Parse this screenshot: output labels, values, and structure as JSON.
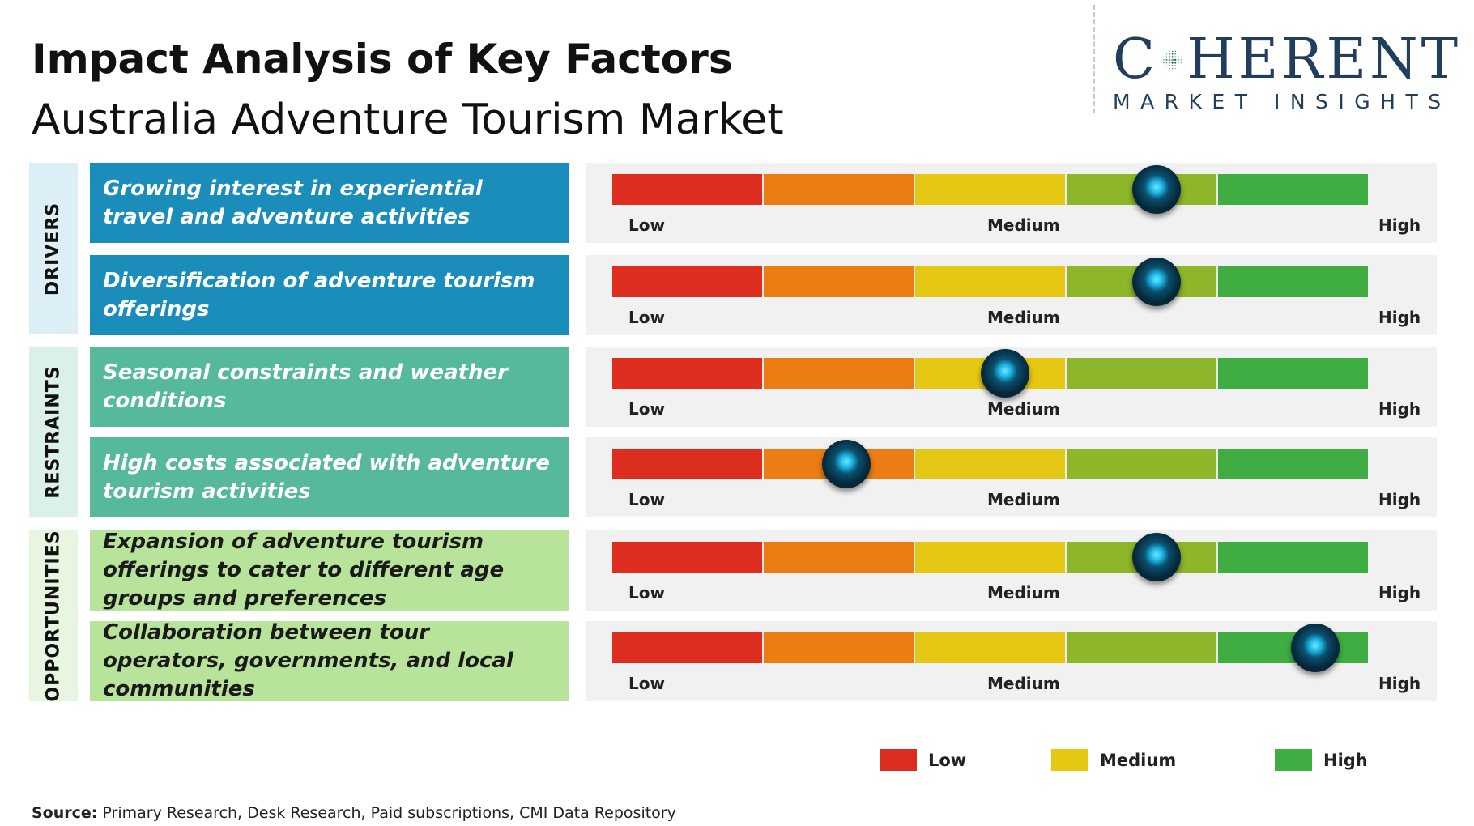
{
  "header": {
    "title": "Impact Analysis of Key Factors",
    "subtitle": "Australia Adventure Tourism Market"
  },
  "logo": {
    "main_left": "C",
    "main_right": "HERENT",
    "tagline": "MARKET INSIGHTS"
  },
  "groups": {
    "drivers": "DRIVERS",
    "restraints": "RESTRAINTS",
    "opportunities": "OPPORTUNITIES"
  },
  "scale_labels": {
    "low": "Low",
    "medium": "Medium",
    "high": "High"
  },
  "colors": {
    "scale_segments": [
      "#dd2d1e",
      "#ec7d13",
      "#e5c813",
      "#8db62a",
      "#3fad42"
    ],
    "legend_low": "#dd2d1e",
    "legend_medium": "#e5c813",
    "legend_high": "#3fad42",
    "drivers": "#1a8dba",
    "restraints": "#56b99c",
    "opportunities": "#b8e39a"
  },
  "legend": {
    "low": "Low",
    "medium": "Medium",
    "high": "High"
  },
  "source": {
    "label": "Source:",
    "text": " Primary Research, Desk Research, Paid subscriptions, CMI Data Repository"
  },
  "chart_data": {
    "type": "gauge",
    "scale": {
      "min": 0,
      "max": 1,
      "labels": [
        "Low",
        "Medium",
        "High"
      ]
    },
    "factors": [
      {
        "group": "DRIVERS",
        "label": "Growing interest in experiential travel and adventure activities",
        "impact": 0.72
      },
      {
        "group": "DRIVERS",
        "label": "Diversification of adventure tourism offerings",
        "impact": 0.72
      },
      {
        "group": "RESTRAINTS",
        "label": "Seasonal constraints and weather conditions",
        "impact": 0.52
      },
      {
        "group": "RESTRAINTS",
        "label": "High costs associated with adventure tourism activities",
        "impact": 0.31
      },
      {
        "group": "OPPORTUNITIES",
        "label": "Expansion of adventure tourism offerings to cater to different age groups and preferences",
        "impact": 0.72
      },
      {
        "group": "OPPORTUNITIES",
        "label": "Collaboration between tour operators, governments, and local communities",
        "impact": 0.93
      }
    ]
  }
}
